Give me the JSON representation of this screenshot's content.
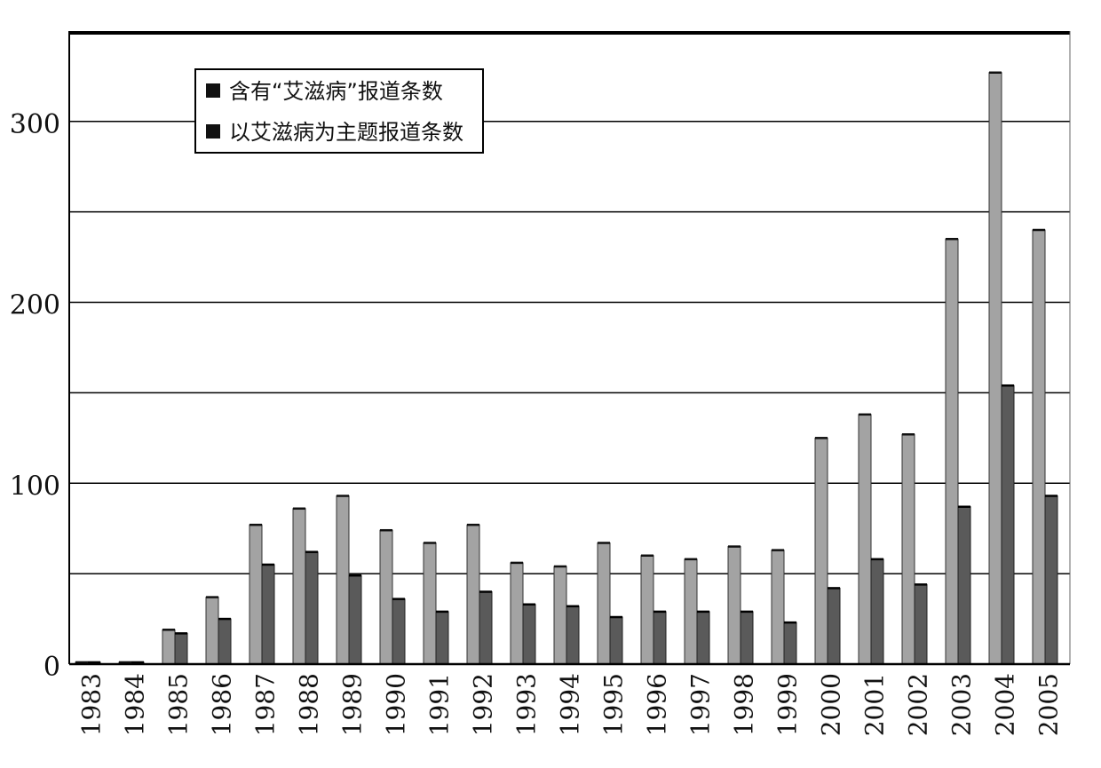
{
  "chart_data": {
    "type": "bar",
    "title": "",
    "xlabel": "",
    "ylabel": "",
    "ylim": [
      0,
      340
    ],
    "yticks": [
      0,
      100,
      200,
      300
    ],
    "grid": "horizontal",
    "legend_position": "top-left",
    "categories": [
      "1983",
      "1984",
      "1985",
      "1986",
      "1987",
      "1988",
      "1989",
      "1990",
      "1991",
      "1992",
      "1993",
      "1994",
      "1995",
      "1996",
      "1997",
      "1998",
      "1999",
      "2000",
      "2001",
      "2002",
      "2003",
      "2004",
      "2005"
    ],
    "series": [
      {
        "name": "含有“艾滋病”报道条数",
        "color": "#a3a3a3",
        "values": [
          1,
          1,
          19,
          37,
          77,
          86,
          93,
          74,
          67,
          77,
          56,
          54,
          67,
          60,
          58,
          65,
          63,
          125,
          138,
          127,
          235,
          327,
          240
        ]
      },
      {
        "name": "以艾滋病为主题报道条数",
        "color": "#5a5a5a",
        "values": [
          1,
          1,
          17,
          25,
          55,
          62,
          49,
          36,
          29,
          40,
          33,
          32,
          26,
          29,
          29,
          29,
          23,
          42,
          58,
          44,
          87,
          154,
          93
        ]
      }
    ]
  }
}
